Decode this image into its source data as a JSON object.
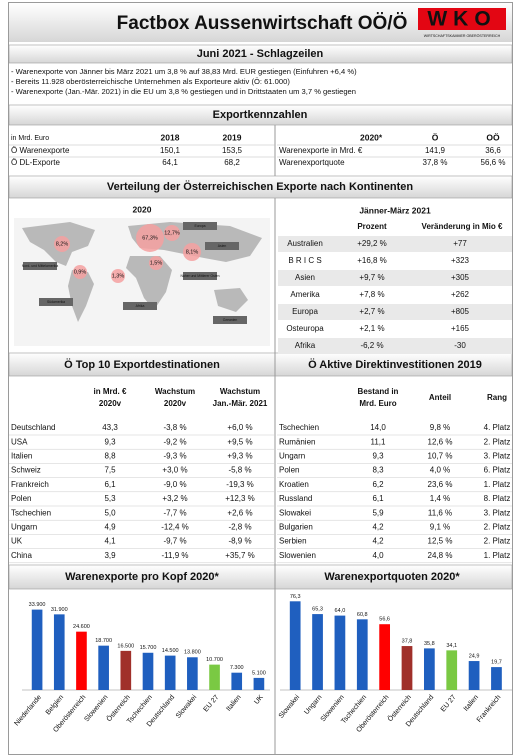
{
  "header": {
    "title": "Factbox Aussenwirtschaft OÖ/Ö",
    "logo": "WKO",
    "logo_subtitle": "WIRTSCHAFTSKAMMER OBERÖSTERREICH"
  },
  "headlines": {
    "title": "Juni 2021 - Schlagzeilen",
    "items": [
      "- Warenexporte von Jänner bis März 2021 um 3,8 % auf 38,83 Mrd. EUR gestiegen (Einfuhren +6,4 %)",
      "- Bereits 11.928 oberösterreichische Unternehmen als Exporteure aktiv (Ö: 61.000)",
      "- Warenexporte (Jan.-Mär. 2021) in die EU um 3,8 % gestiegen und in Drittstaaten um 3,7 % gestiegen"
    ]
  },
  "export_kennzahlen": {
    "title": "Exportkennzahlen",
    "left": {
      "header": [
        "in Mrd. Euro",
        "2018",
        "2019"
      ],
      "rows": [
        [
          "Ö Warenexporte",
          "150,1",
          "153,5"
        ],
        [
          "Ö DL-Exporte",
          "64,1",
          "68,2"
        ]
      ]
    },
    "right": {
      "header": [
        "2020*",
        "Ö",
        "OÖ"
      ],
      "rows": [
        [
          "Warenexporte in Mrd. €",
          "141,9",
          "36,6"
        ],
        [
          "Warenexportquote",
          "37,8 %",
          "56,6 %"
        ]
      ]
    }
  },
  "continents": {
    "title": "Verteilung der Österreichischen Exporte nach Kontinenten",
    "map": {
      "title": "2020",
      "bubbles": [
        "67,3%",
        "12,7%",
        "8,2%",
        "8,1%",
        "1,5%",
        "0,9%",
        "1,3%"
      ],
      "regions": [
        "Europa",
        "Nord- und Mittelamerika",
        "Asien",
        "Naher und Mittlerer Osten",
        "Südamerika",
        "Afrika",
        "Ozeanien"
      ]
    },
    "table": {
      "title": "Jänner-März 2021",
      "header": [
        "Prozent",
        "Veränderung in Mio €"
      ],
      "rows": [
        [
          "Australien",
          "+29,2 %",
          "+77"
        ],
        [
          "B R I C S",
          "+16,8 %",
          "+323"
        ],
        [
          "Asien",
          "+9,7 %",
          "+305"
        ],
        [
          "Amerika",
          "+7,8 %",
          "+262"
        ],
        [
          "Europa",
          "+2,7 %",
          "+805"
        ],
        [
          "Osteuropa",
          "+2,1 %",
          "+165"
        ],
        [
          "Afrika",
          "-6,2 %",
          "-30"
        ]
      ]
    }
  },
  "top10": {
    "title": "Ö Top 10 Exportdestinationen",
    "header": [
      [
        "in Mrd. €",
        "2020v"
      ],
      [
        "Wachstum",
        "2020v"
      ],
      [
        "Wachstum",
        "Jan.-Mär. 2021"
      ]
    ],
    "rows": [
      [
        "Deutschland",
        "43,3",
        "-3,8 %",
        "+6,0 %"
      ],
      [
        "USA",
        "9,3",
        "-9,2 %",
        "+9,5 %"
      ],
      [
        "Italien",
        "8,8",
        "-9,3 %",
        "+9,3 %"
      ],
      [
        "Schweiz",
        "7,5",
        "+3,0 %",
        "-5,8 %"
      ],
      [
        "Frankreich",
        "6,1",
        "-9,0 %",
        "-19,3 %"
      ],
      [
        "Polen",
        "5,3",
        "+3,2 %",
        "+12,3 %"
      ],
      [
        "Tschechien",
        "5,0",
        "-7,7 %",
        "+2,6 %"
      ],
      [
        "Ungarn",
        "4,9",
        "-12,4 %",
        "-2,8 %"
      ],
      [
        "UK",
        "4,1",
        "-9,7 %",
        "-8,9 %"
      ],
      [
        "China",
        "3,9",
        "-11,9 %",
        "+35,7 %"
      ]
    ]
  },
  "fdi": {
    "title": "Ö Aktive Direktinvestitionen 2019",
    "header": [
      [
        "Bestand in",
        "Mrd. Euro"
      ],
      [
        "Anteil"
      ],
      [
        "Rang"
      ]
    ],
    "rows": [
      [
        "Tschechien",
        "14,0",
        "9,8 %",
        "4. Platz"
      ],
      [
        "Rumänien",
        "11,1",
        "12,6 %",
        "2. Platz"
      ],
      [
        "Ungarn",
        "9,3",
        "10,7 %",
        "3. Platz"
      ],
      [
        "Polen",
        "8,3",
        "4,0 %",
        "6. Platz"
      ],
      [
        "Kroatien",
        "6,2",
        "23,6 %",
        "1. Platz"
      ],
      [
        "Russland",
        "6,1",
        "1,4 %",
        "8. Platz"
      ],
      [
        "Slowakei",
        "5,9",
        "11,6 %",
        "3. Platz"
      ],
      [
        "Bulgarien",
        "4,2",
        "9,1 %",
        "2. Platz"
      ],
      [
        "Serbien",
        "4,2",
        "12,5 %",
        "2. Platz"
      ],
      [
        "Slowenien",
        "4,0",
        "24,8 %",
        "1. Platz"
      ]
    ]
  },
  "charts": [
    {
      "type": "bar",
      "title": "Warenexporte pro Kopf 2020*",
      "categories": [
        "Niederlande",
        "Belgien",
        "Oberösterreich",
        "Slowenien",
        "Österreich",
        "Tschechien",
        "Deutschland",
        "Slowakei",
        "EU 27",
        "Italien",
        "UK"
      ],
      "values": [
        33900,
        31900,
        24600,
        18700,
        16500,
        15700,
        14500,
        13800,
        10700,
        7300,
        5100
      ],
      "value_labels": [
        "33.900",
        "31.900",
        "24.600",
        "18.700",
        "16.500",
        "15.700",
        "14.500",
        "13.800",
        "10.700",
        "7.300",
        "5.100"
      ],
      "colors": [
        "#1f5fbf",
        "#1f5fbf",
        "#ff0000",
        "#1f5fbf",
        "#a0302a",
        "#1f5fbf",
        "#1f5fbf",
        "#1f5fbf",
        "#7ac943",
        "#1f5fbf",
        "#1f5fbf"
      ],
      "ylim": [
        0,
        35000
      ]
    },
    {
      "type": "bar",
      "title": "Warenexportquoten 2020*",
      "categories": [
        "Slowakei",
        "Ungarn",
        "Slowenien",
        "Tschechien",
        "Oberösterreich",
        "Österreich",
        "Deutschland",
        "EU 27",
        "Italien",
        "Frankreich",
        "UK"
      ],
      "values": [
        76.3,
        65.3,
        64.0,
        60.8,
        56.6,
        37.8,
        35.8,
        34.1,
        24.9,
        19.7,
        14.7
      ],
      "value_labels": [
        "76,3",
        "65,3",
        "64,0",
        "60,8",
        "56,6",
        "37,8",
        "35,8",
        "34,1",
        "24,9",
        "19,7",
        "14,7"
      ],
      "colors": [
        "#1f5fbf",
        "#1f5fbf",
        "#1f5fbf",
        "#1f5fbf",
        "#ff0000",
        "#a0302a",
        "#1f5fbf",
        "#7ac943",
        "#1f5fbf",
        "#1f5fbf",
        "#1f5fbf"
      ],
      "ylim": [
        0,
        80
      ]
    }
  ]
}
